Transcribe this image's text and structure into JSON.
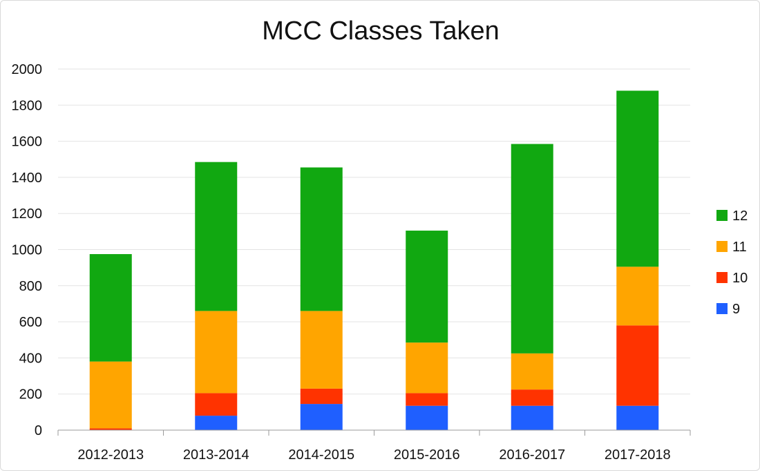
{
  "chart_data": {
    "type": "bar",
    "stacked": true,
    "title": "MCC Classes Taken",
    "xlabel": "",
    "ylabel": "",
    "categories": [
      "2012-2013",
      "2013-2014",
      "2014-2015",
      "2015-2016",
      "2016-2017",
      "2017-2018"
    ],
    "series": [
      {
        "name": "9",
        "color": "#1f5fff",
        "values": [
          0,
          80,
          145,
          135,
          135,
          135
        ]
      },
      {
        "name": "10",
        "color": "#ff3300",
        "values": [
          10,
          125,
          85,
          70,
          90,
          445
        ]
      },
      {
        "name": "11",
        "color": "#ffa500",
        "values": [
          370,
          455,
          430,
          280,
          200,
          325
        ]
      },
      {
        "name": "12",
        "color": "#11a811",
        "values": [
          595,
          825,
          795,
          620,
          1160,
          975
        ]
      }
    ],
    "ylim": [
      0,
      2000
    ],
    "yticks": [
      0,
      200,
      400,
      600,
      800,
      1000,
      1200,
      1400,
      1600,
      1800,
      2000
    ],
    "grid": true,
    "legend_position": "right",
    "legend_order": [
      "12",
      "11",
      "10",
      "9"
    ]
  }
}
